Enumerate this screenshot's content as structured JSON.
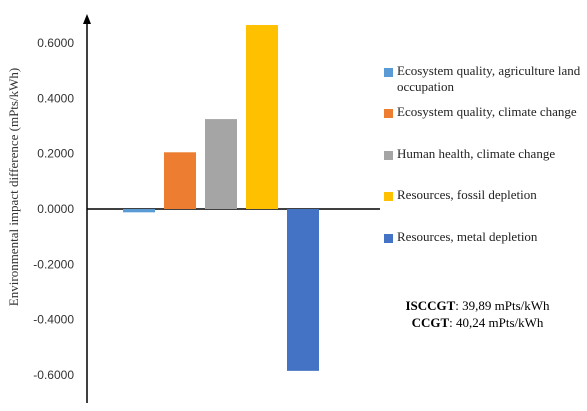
{
  "chart_data": {
    "type": "bar",
    "title": "",
    "xlabel": "",
    "ylabel": "Environmental  impact difference (mPts/kWh)",
    "ylim": [
      -0.6,
      0.6
    ],
    "yticks": [
      "0.6000",
      "0.4000",
      "0.2000",
      "0.0000",
      "-0.2000",
      "-0.4000",
      "-0.6000"
    ],
    "ytick_values": [
      0.6,
      0.4,
      0.2,
      0.0,
      -0.2,
      -0.4,
      -0.6
    ],
    "grid": false,
    "legend_position": "right",
    "series": [
      {
        "name": "Ecosystem  quality, agriculture land occupation",
        "value": -0.012,
        "color": "#5b9bd5"
      },
      {
        "name": "Ecosystem quality, climate change",
        "value": 0.205,
        "color": "#ed7d31"
      },
      {
        "name": "Human health, climate change",
        "value": 0.325,
        "color": "#a5a5a5"
      },
      {
        "name": "Resources, fossil depletion",
        "value": 0.665,
        "color": "#ffc000"
      },
      {
        "name": "Resources, metal depletion",
        "value": -0.585,
        "color": "#4472c4"
      }
    ],
    "annotations": [
      {
        "label": "ISCCGT",
        "value": ": 39,89 mPts/kWh"
      },
      {
        "label": "CCGT",
        "value": ": 40,24 mPts/kWh"
      }
    ]
  }
}
